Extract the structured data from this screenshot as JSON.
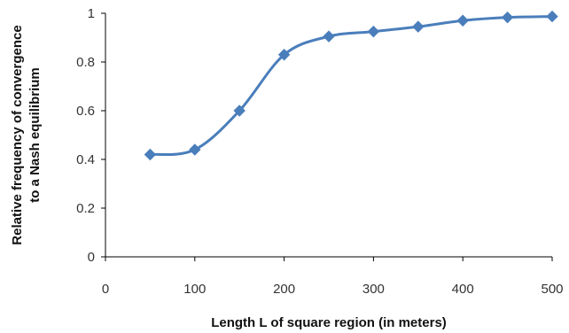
{
  "chart_data": {
    "type": "line",
    "xlabel": "Length L of square region (in meters)",
    "ylabel_lines": [
      "Relative frequency of convergence",
      "to a Nash equilibrium"
    ],
    "xlim": [
      0,
      500
    ],
    "ylim": [
      0,
      1
    ],
    "x_ticks": [
      0,
      100,
      200,
      300,
      400,
      500
    ],
    "y_ticks": [
      0,
      0.2,
      0.4,
      0.6,
      0.8,
      1
    ],
    "x_tick_labels": [
      "0",
      "100",
      "200",
      "300",
      "400",
      "500"
    ],
    "y_tick_labels": [
      "0",
      "0.2",
      "0.4",
      "0.6",
      "0.8",
      "1"
    ],
    "grid": false,
    "legend": false,
    "smoothed": true,
    "marker": "diamond",
    "series": [
      {
        "color": "#4A7EBB",
        "x": [
          50,
          100,
          150,
          200,
          250,
          300,
          350,
          400,
          450,
          500
        ],
        "y": [
          0.42,
          0.44,
          0.6,
          0.83,
          0.905,
          0.925,
          0.945,
          0.97,
          0.983,
          0.987
        ]
      }
    ]
  }
}
